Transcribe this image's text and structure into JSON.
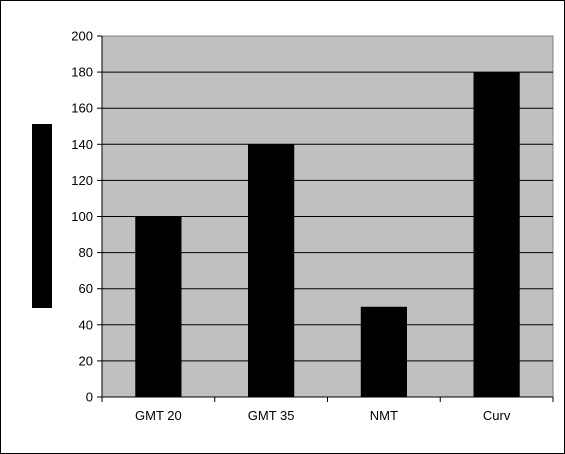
{
  "chart_data": {
    "type": "bar",
    "title": "",
    "xlabel": "",
    "ylabel": "",
    "categories": [
      "GMT 20",
      "GMT 35",
      "NMT",
      "Curv"
    ],
    "values": [
      100,
      140,
      50,
      180
    ],
    "ylim": [
      0,
      200
    ],
    "ytick_step": 20,
    "yticks": [
      "0",
      "20",
      "40",
      "60",
      "80",
      "100",
      "120",
      "140",
      "160",
      "180",
      "200"
    ],
    "grid": true,
    "legend": "left",
    "colors": {
      "bar": "#000000",
      "plot_background": "#c0c0c0",
      "gridline": "#000000",
      "legend_key": "#000000"
    }
  }
}
